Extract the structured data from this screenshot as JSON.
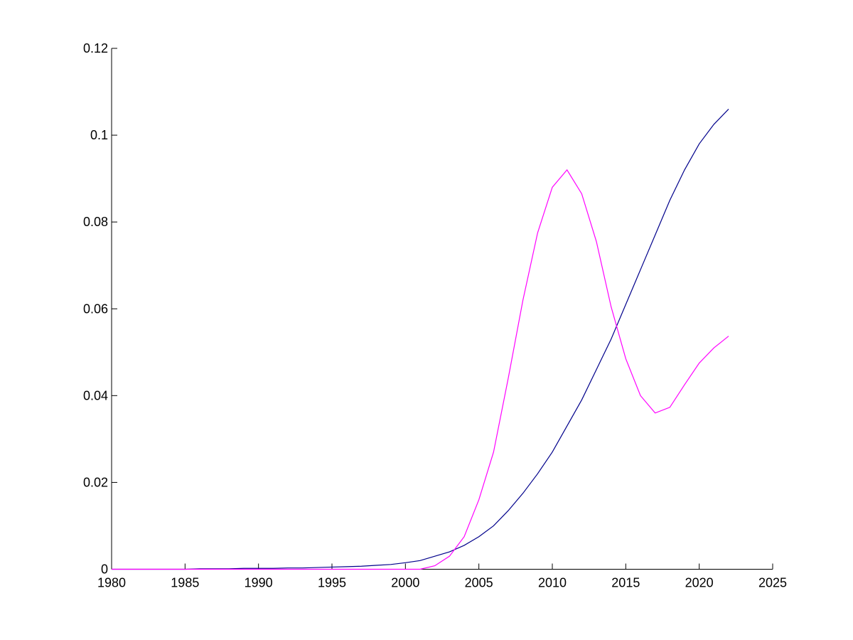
{
  "chart_data": {
    "type": "line",
    "x": [
      1980,
      1981,
      1982,
      1983,
      1984,
      1985,
      1986,
      1987,
      1988,
      1989,
      1990,
      1991,
      1992,
      1993,
      1994,
      1995,
      1996,
      1997,
      1998,
      1999,
      2000,
      2001,
      2002,
      2003,
      2004,
      2005,
      2006,
      2007,
      2008,
      2009,
      2010,
      2011,
      2012,
      2013,
      2014,
      2015,
      2016,
      2017,
      2018,
      2019,
      2020,
      2021,
      2022
    ],
    "series": [
      {
        "color": "#00008b",
        "values": [
          0,
          0,
          0,
          0,
          0,
          0,
          0.0001,
          0.0001,
          0.0001,
          0.0002,
          0.0002,
          0.0002,
          0.0003,
          0.0003,
          0.0004,
          0.0005,
          0.0006,
          0.0007,
          0.0009,
          0.0011,
          0.0015,
          0.002,
          0.003,
          0.004,
          0.0055,
          0.0075,
          0.01,
          0.0135,
          0.0175,
          0.022,
          0.027,
          0.033,
          0.039,
          0.046,
          0.053,
          0.061,
          0.069,
          0.077,
          0.085,
          0.092,
          0.098,
          0.1025,
          0.106
        ]
      },
      {
        "color": "#ff00ff",
        "values": [
          0,
          0,
          0,
          0,
          0,
          0,
          0,
          0,
          0,
          0,
          0,
          0,
          0,
          0,
          0,
          0,
          0,
          0,
          0,
          0,
          0,
          0,
          0.0008,
          0.003,
          0.0075,
          0.016,
          0.027,
          0.044,
          0.062,
          0.0775,
          0.088,
          0.092,
          0.0865,
          0.0755,
          0.0605,
          0.0485,
          0.04,
          0.036,
          0.0373,
          0.0425,
          0.0475,
          0.051,
          0.0537
        ]
      }
    ],
    "xlim": [
      1980,
      2025
    ],
    "xticks": [
      1980,
      1985,
      1990,
      1995,
      2000,
      2005,
      2010,
      2015,
      2020,
      2025
    ],
    "ylim": [
      0,
      0.12
    ],
    "yticks": [
      0,
      0.02,
      0.04,
      0.06,
      0.08,
      0.1,
      0.12
    ]
  }
}
